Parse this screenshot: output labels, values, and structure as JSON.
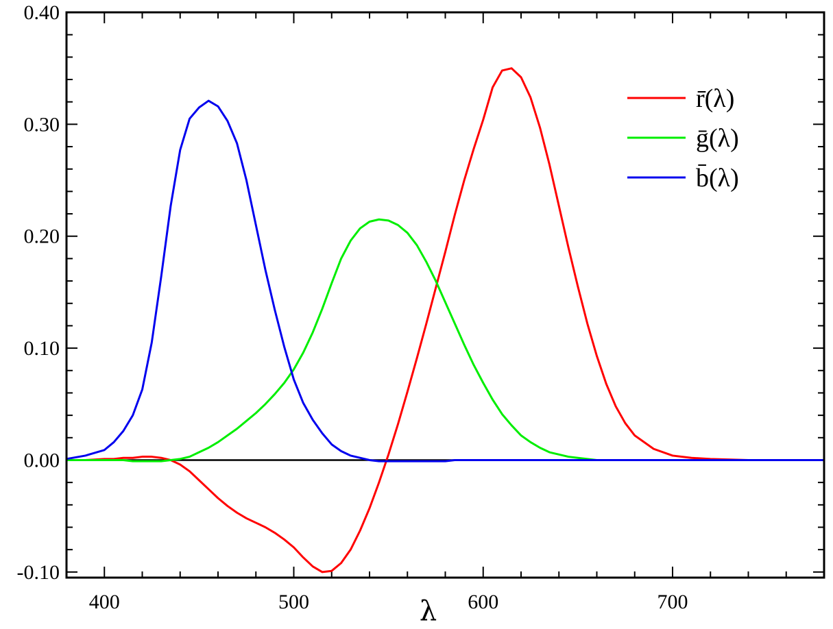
{
  "chart_data": {
    "type": "line",
    "xlabel": "λ",
    "ylabel": "",
    "xlim": [
      380,
      780
    ],
    "ylim": [
      -0.105,
      0.4
    ],
    "xticks": [
      400,
      500,
      600,
      700
    ],
    "yticks": [
      -0.1,
      0.0,
      0.1,
      0.2,
      0.3,
      0.4
    ],
    "ytick_labels": [
      "-0.10",
      "0.00",
      "0.10",
      "0.20",
      "0.30",
      "0.40"
    ],
    "grid": false,
    "legend_position": "top-right",
    "zero_line": true,
    "x": [
      380,
      390,
      400,
      405,
      410,
      415,
      420,
      425,
      430,
      435,
      440,
      445,
      450,
      455,
      460,
      465,
      470,
      475,
      480,
      485,
      490,
      495,
      500,
      505,
      510,
      515,
      520,
      525,
      530,
      535,
      540,
      545,
      550,
      555,
      560,
      565,
      570,
      575,
      580,
      585,
      590,
      595,
      600,
      605,
      610,
      615,
      620,
      625,
      630,
      635,
      640,
      645,
      650,
      655,
      660,
      665,
      670,
      675,
      680,
      690,
      700,
      710,
      720,
      740,
      760,
      780
    ],
    "series": [
      {
        "name": "r̄(λ)",
        "color": "#ff0000",
        "values": [
          0.0,
          0.0,
          0.001,
          0.001,
          0.002,
          0.002,
          0.003,
          0.003,
          0.002,
          0.0,
          -0.004,
          -0.01,
          -0.018,
          -0.026,
          -0.034,
          -0.041,
          -0.047,
          -0.052,
          -0.056,
          -0.06,
          -0.065,
          -0.071,
          -0.078,
          -0.087,
          -0.095,
          -0.1,
          -0.099,
          -0.092,
          -0.08,
          -0.063,
          -0.043,
          -0.02,
          0.005,
          0.032,
          0.061,
          0.091,
          0.122,
          0.154,
          0.186,
          0.219,
          0.25,
          0.278,
          0.304,
          0.333,
          0.348,
          0.35,
          0.342,
          0.324,
          0.297,
          0.264,
          0.227,
          0.19,
          0.155,
          0.122,
          0.093,
          0.068,
          0.048,
          0.033,
          0.022,
          0.01,
          0.004,
          0.002,
          0.001,
          0.0,
          0.0,
          0.0
        ]
      },
      {
        "name": "ḡ(λ)",
        "color": "#00ee00",
        "values": [
          0.0,
          0.0,
          0.0,
          0.0,
          0.0,
          -0.001,
          -0.001,
          -0.001,
          -0.001,
          0.0,
          0.001,
          0.003,
          0.007,
          0.011,
          0.016,
          0.022,
          0.028,
          0.035,
          0.042,
          0.05,
          0.059,
          0.069,
          0.081,
          0.096,
          0.114,
          0.135,
          0.158,
          0.18,
          0.196,
          0.207,
          0.213,
          0.215,
          0.214,
          0.21,
          0.203,
          0.192,
          0.177,
          0.16,
          0.141,
          0.122,
          0.103,
          0.085,
          0.069,
          0.054,
          0.041,
          0.031,
          0.022,
          0.016,
          0.011,
          0.007,
          0.005,
          0.003,
          0.002,
          0.001,
          0.0,
          0.0,
          0.0,
          0.0,
          0.0,
          0.0,
          0.0,
          0.0,
          0.0,
          0.0,
          0.0,
          0.0
        ]
      },
      {
        "name": "b̄(λ)",
        "color": "#0000ee",
        "values": [
          0.001,
          0.004,
          0.009,
          0.016,
          0.026,
          0.04,
          0.063,
          0.105,
          0.164,
          0.227,
          0.277,
          0.305,
          0.315,
          0.321,
          0.316,
          0.303,
          0.283,
          0.25,
          0.21,
          0.17,
          0.134,
          0.101,
          0.072,
          0.051,
          0.036,
          0.024,
          0.014,
          0.008,
          0.004,
          0.002,
          0.0,
          -0.001,
          -0.001,
          -0.001,
          -0.001,
          -0.001,
          -0.001,
          -0.001,
          -0.001,
          0.0,
          0.0,
          0.0,
          0.0,
          0.0,
          0.0,
          0.0,
          0.0,
          0.0,
          0.0,
          0.0,
          0.0,
          0.0,
          0.0,
          0.0,
          0.0,
          0.0,
          0.0,
          0.0,
          0.0,
          0.0,
          0.0,
          0.0,
          0.0,
          0.0,
          0.0,
          0.0
        ]
      }
    ]
  }
}
